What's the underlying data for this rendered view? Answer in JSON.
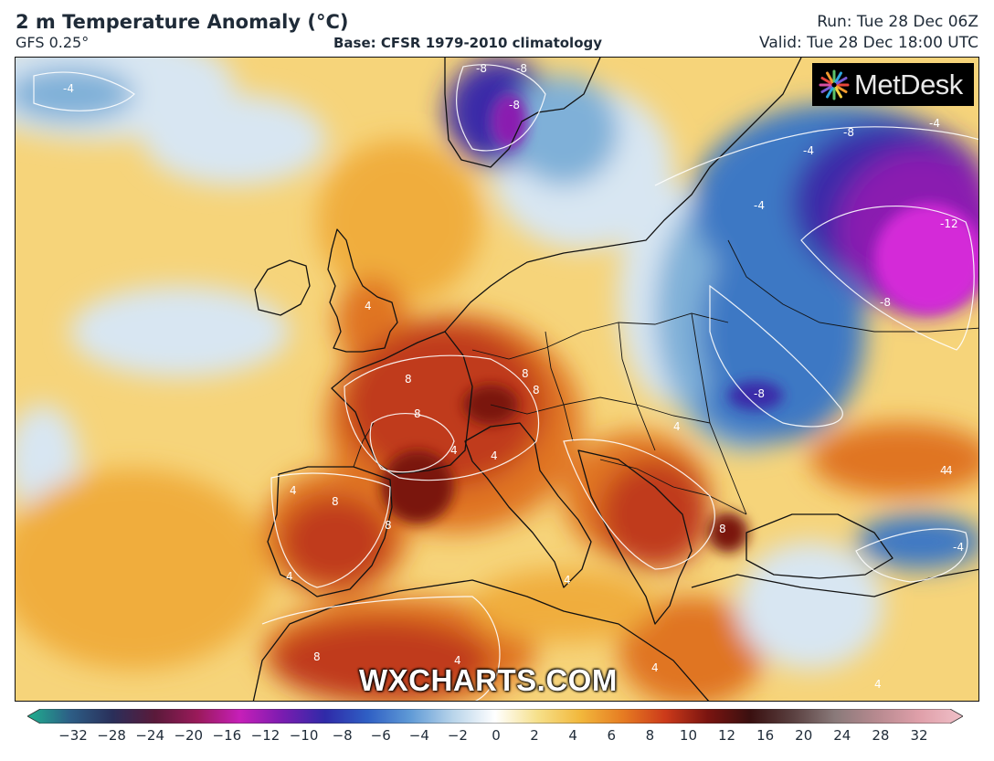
{
  "header": {
    "title": "2 m Temperature Anomaly (°C)",
    "model": "GFS 0.25°",
    "base": "Base: CFSR 1979-2010 climatology",
    "run": "Run: Tue 28 Dec 06Z",
    "valid": "Valid: Tue 28 Dec 18:00 UTC"
  },
  "map": {
    "contour_labels": [
      "-4",
      "-8",
      "-8",
      "-8",
      "-4",
      "-8",
      "-4",
      "-4",
      "-12",
      "-8",
      "-8",
      "4",
      "8",
      "8",
      "8",
      "4",
      "4",
      "8",
      "8",
      "4",
      "8",
      "4",
      "4",
      "8",
      "4",
      "4",
      "8",
      "4",
      "4",
      "4",
      "4",
      "-4"
    ],
    "colors": {
      "warm_light": "#f6d47a",
      "warm_mid": "#f0ad3c",
      "warm_orange": "#e07424",
      "warm_red": "#c03a1c",
      "warm_dark": "#7a1410",
      "cool_light": "#d8e6f2",
      "cool_mid": "#7fb0d8",
      "cool_blue": "#3d78c4",
      "cool_dark": "#3a2aa8",
      "cold_purple": "#8a1cb0",
      "cold_magenta": "#d42ad8"
    }
  },
  "logo": {
    "text": "MetDesk",
    "icon": "metdesk-burst-icon"
  },
  "watermark": "WXCHARTS.COM",
  "colorbar": {
    "ticks": [
      "−32",
      "−28",
      "−24",
      "−20",
      "−16",
      "−12",
      "−10",
      "−8",
      "−6",
      "−4",
      "−2",
      "0",
      "2",
      "4",
      "6",
      "8",
      "10",
      "12",
      "16",
      "20",
      "24",
      "28",
      "32"
    ],
    "stops": [
      "#1fb08e",
      "#2d5e86",
      "#2a2f5a",
      "#5a1a3a",
      "#9a1a5a",
      "#c61fb8",
      "#7a1cb0",
      "#2f2aa8",
      "#2f5fc4",
      "#5f9ad6",
      "#b8d4ea",
      "#ffffff",
      "#f6e08a",
      "#f2b83c",
      "#e67c22",
      "#cc3a1a",
      "#7a1410",
      "#3a1010",
      "#5a4040",
      "#8a7a7a",
      "#b88a90",
      "#e0a0aa",
      "#f0c0c8"
    ]
  }
}
